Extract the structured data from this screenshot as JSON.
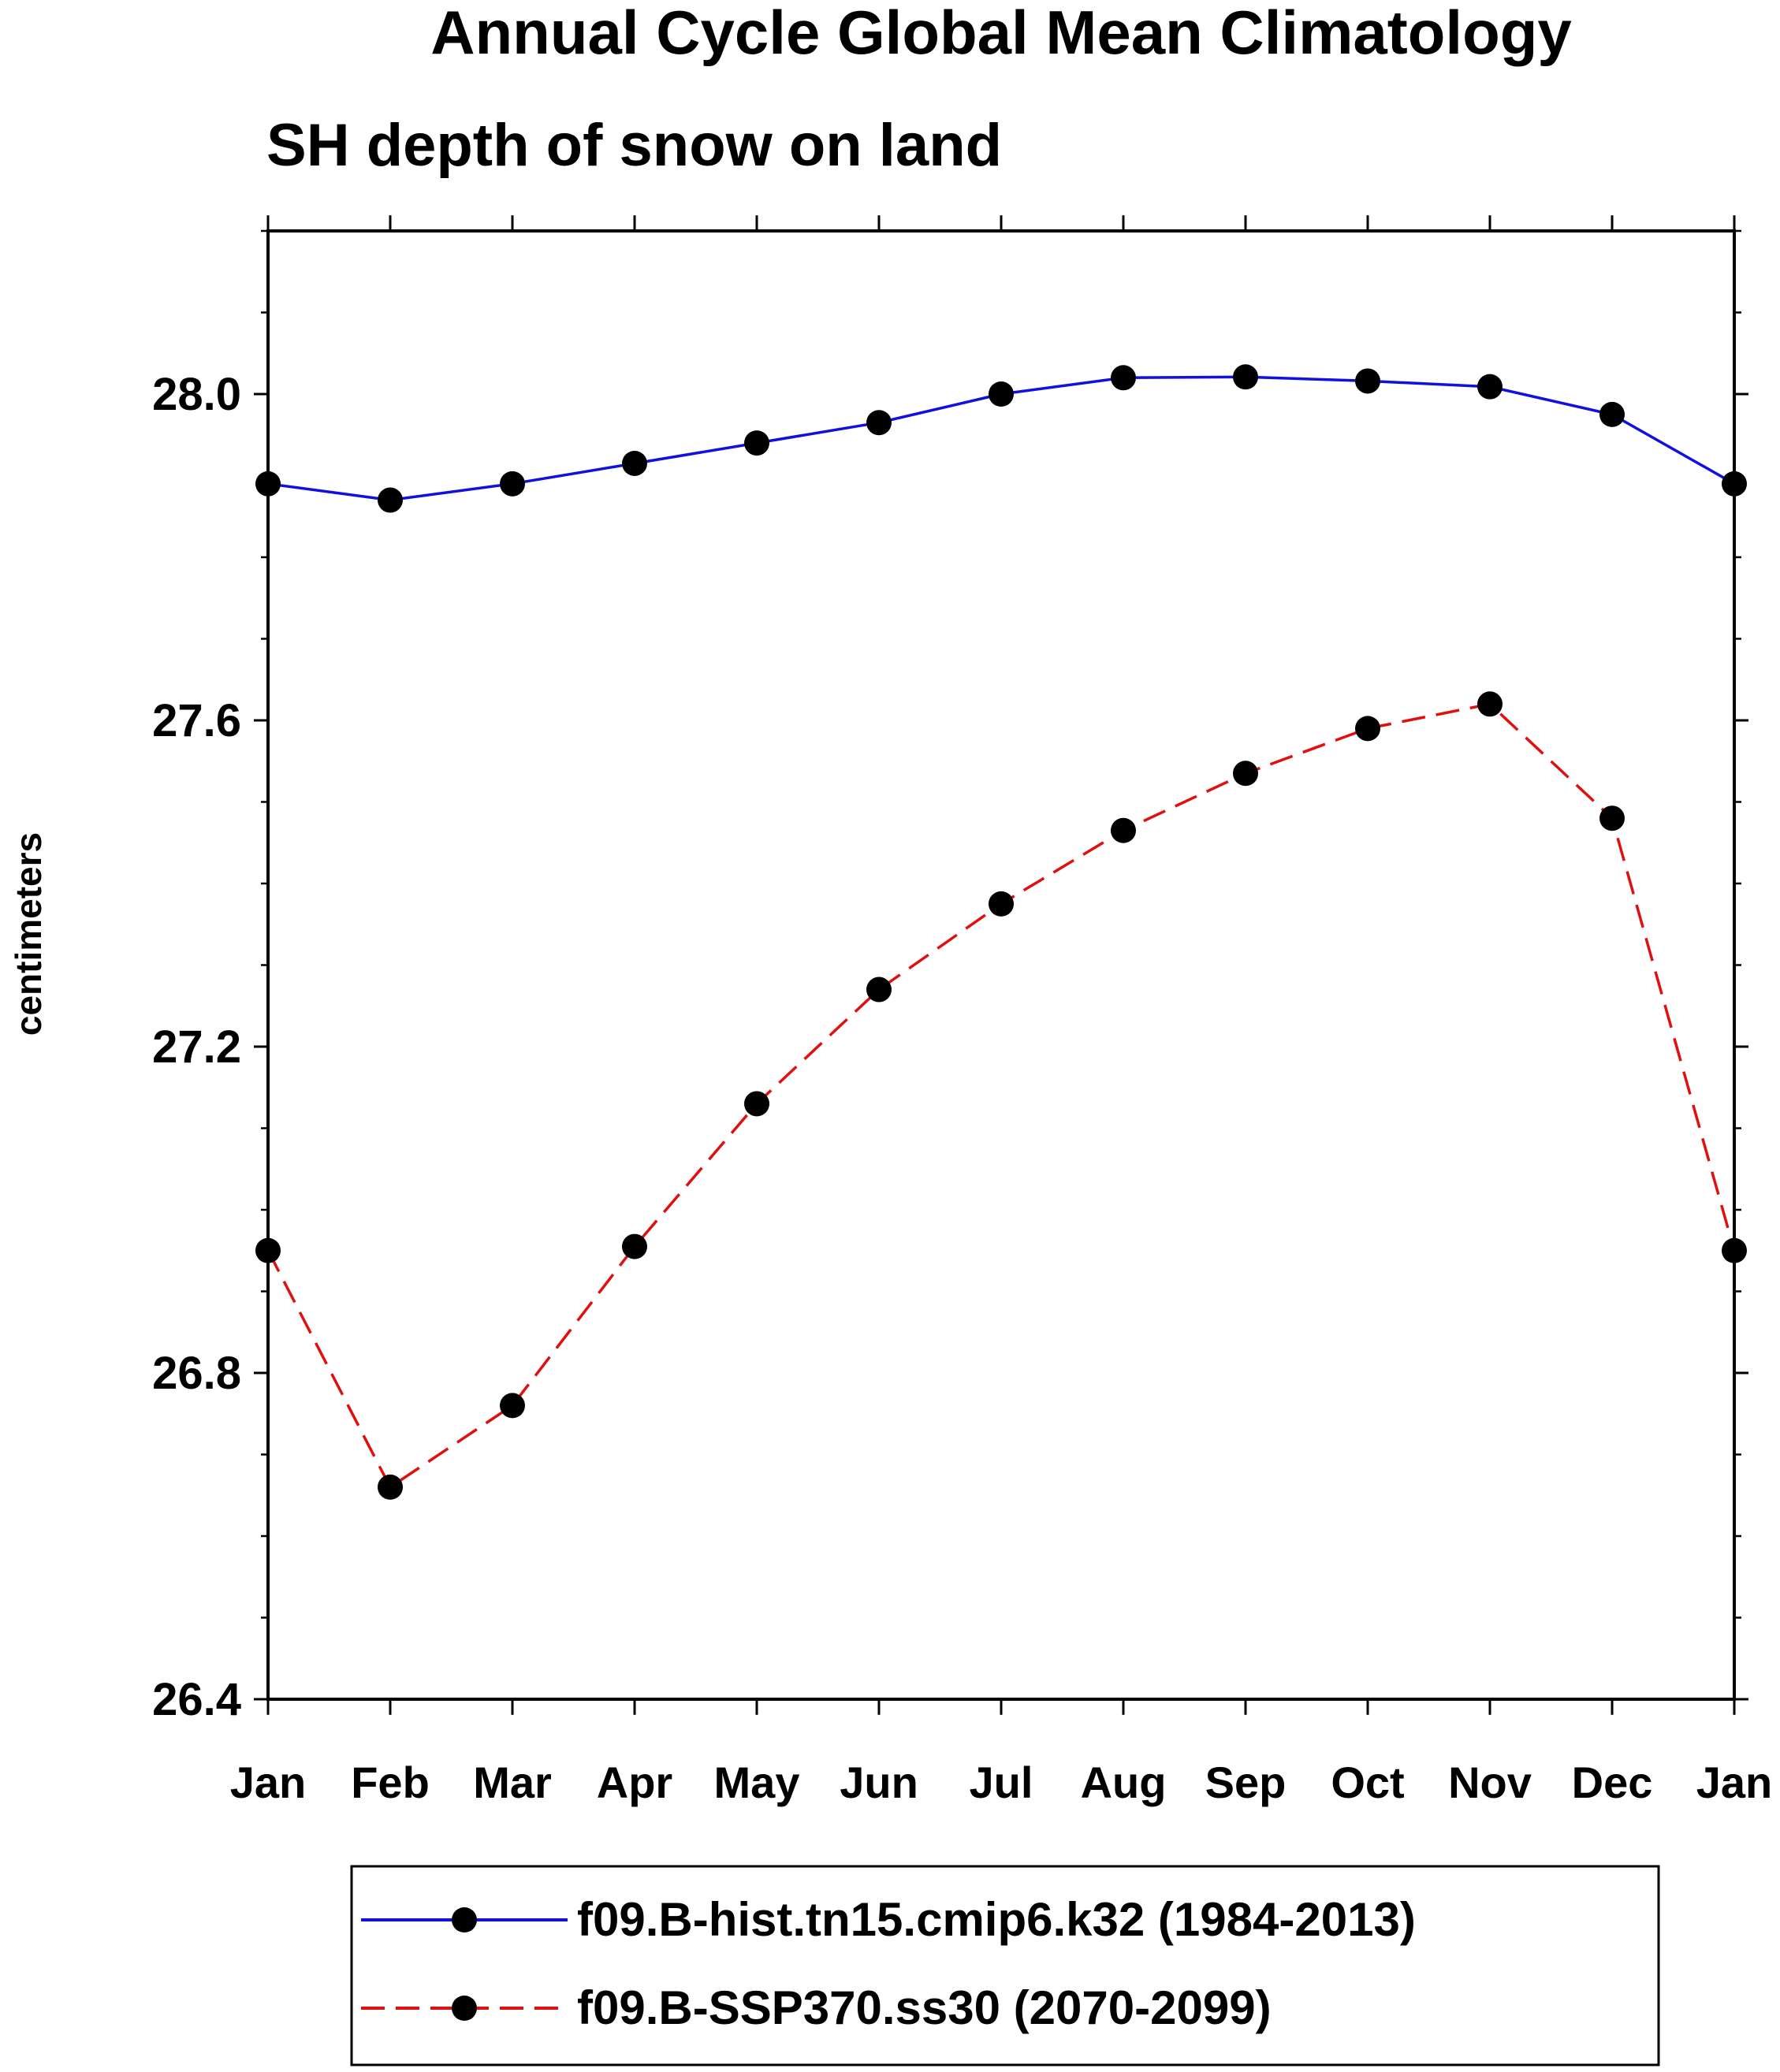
{
  "chart_data": {
    "type": "line",
    "title": "Annual Cycle Global Mean Climatology",
    "subtitle": "SH depth of snow on land",
    "xlabel": "",
    "ylabel": "centimeters",
    "categories": [
      "Jan",
      "Feb",
      "Mar",
      "Apr",
      "May",
      "Jun",
      "Jul",
      "Aug",
      "Sep",
      "Oct",
      "Nov",
      "Dec",
      "Jan"
    ],
    "ylim": [
      26.4,
      28.2
    ],
    "yticks": [
      "26.4",
      "26.8",
      "27.2",
      "27.6",
      "28.0"
    ],
    "ytick_values": [
      26.4,
      26.8,
      27.2,
      27.6,
      28.0
    ],
    "y_minor_step": 0.1,
    "grid": false,
    "legend_position": "bottom",
    "series": [
      {
        "name": "f09.B-hist.tn15.cmip6.k32 (1984-2013)",
        "color": "#1010e0",
        "dash": "solid",
        "marker": "dot",
        "values": [
          27.89,
          27.87,
          27.89,
          27.915,
          27.94,
          27.965,
          28.0,
          28.02,
          28.021,
          28.016,
          28.009,
          27.975,
          27.89
        ]
      },
      {
        "name": "f09.B-SSP370.ss30 (2070-2099)",
        "color": "#e01010",
        "dash": "dashed",
        "marker": "dot",
        "values": [
          26.95,
          26.66,
          26.76,
          26.955,
          27.13,
          27.27,
          27.375,
          27.465,
          27.535,
          27.59,
          27.62,
          27.48,
          26.95
        ]
      }
    ]
  }
}
